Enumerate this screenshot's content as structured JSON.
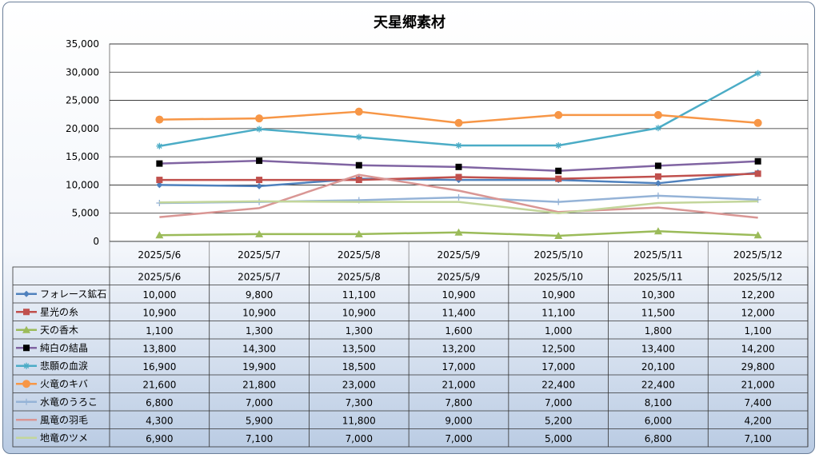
{
  "chart_data": {
    "type": "line",
    "title": "天星郷素材",
    "categories": [
      "2025/5/6",
      "2025/5/7",
      "2025/5/8",
      "2025/5/9",
      "2025/5/10",
      "2025/5/11",
      "2025/5/12"
    ],
    "yticks": [
      "0",
      "5,000",
      "10,000",
      "15,000",
      "20,000",
      "25,000",
      "30,000",
      "35,000"
    ],
    "ylim": [
      0,
      35000
    ],
    "grid": true,
    "legend": "data-table-left",
    "series": [
      {
        "name": "フォレース鉱石",
        "color": "#4f81bd",
        "marker": "diamond",
        "values": [
          10000,
          9800,
          11100,
          10900,
          10900,
          10300,
          12200
        ],
        "labels": [
          "10,000",
          "9,800",
          "11,100",
          "10,900",
          "10,900",
          "10,300",
          "12,200"
        ]
      },
      {
        "name": "星光の糸",
        "color": "#c0504d",
        "marker": "square",
        "values": [
          10900,
          10900,
          10900,
          11400,
          11100,
          11500,
          12000
        ],
        "labels": [
          "10,900",
          "10,900",
          "10,900",
          "11,400",
          "11,100",
          "11,500",
          "12,000"
        ]
      },
      {
        "name": "天の香木",
        "color": "#9bbb59",
        "marker": "triangle",
        "values": [
          1100,
          1300,
          1300,
          1600,
          1000,
          1800,
          1100
        ],
        "labels": [
          "1,100",
          "1,300",
          "1,300",
          "1,600",
          "1,000",
          "1,800",
          "1,100"
        ]
      },
      {
        "name": "純白の結晶",
        "color": "#8064a2",
        "markerColor": "#000000",
        "marker": "square",
        "values": [
          13800,
          14300,
          13500,
          13200,
          12500,
          13400,
          14200
        ],
        "labels": [
          "13,800",
          "14,300",
          "13,500",
          "13,200",
          "12,500",
          "13,400",
          "14,200"
        ]
      },
      {
        "name": "悲願の血涙",
        "color": "#4bacc6",
        "marker": "star",
        "values": [
          16900,
          19900,
          18500,
          17000,
          17000,
          20100,
          29800
        ],
        "labels": [
          "16,900",
          "19,900",
          "18,500",
          "17,000",
          "17,000",
          "20,100",
          "29,800"
        ]
      },
      {
        "name": "火竜のキバ",
        "color": "#f79646",
        "marker": "circle",
        "values": [
          21600,
          21800,
          23000,
          21000,
          22400,
          22400,
          21000
        ],
        "labels": [
          "21,600",
          "21,800",
          "23,000",
          "21,000",
          "22,400",
          "22,400",
          "21,000"
        ]
      },
      {
        "name": "水竜のうろこ",
        "color": "#95b3d7",
        "marker": "plus",
        "values": [
          6800,
          7000,
          7300,
          7800,
          7000,
          8100,
          7400
        ],
        "labels": [
          "6,800",
          "7,000",
          "7,300",
          "7,800",
          "7,000",
          "8,100",
          "7,400"
        ]
      },
      {
        "name": "風竜の羽毛",
        "color": "#d99694",
        "marker": "none",
        "values": [
          4300,
          5900,
          11800,
          9000,
          5200,
          6000,
          4200
        ],
        "labels": [
          "4,300",
          "5,900",
          "11,800",
          "9,000",
          "5,200",
          "6,000",
          "4,200"
        ]
      },
      {
        "name": "地竜のツメ",
        "color": "#c3d69b",
        "marker": "none",
        "values": [
          6900,
          7100,
          7000,
          7000,
          5000,
          6800,
          7100
        ],
        "labels": [
          "6,900",
          "7,100",
          "7,000",
          "7,000",
          "5,000",
          "6,800",
          "7,100"
        ]
      }
    ]
  }
}
